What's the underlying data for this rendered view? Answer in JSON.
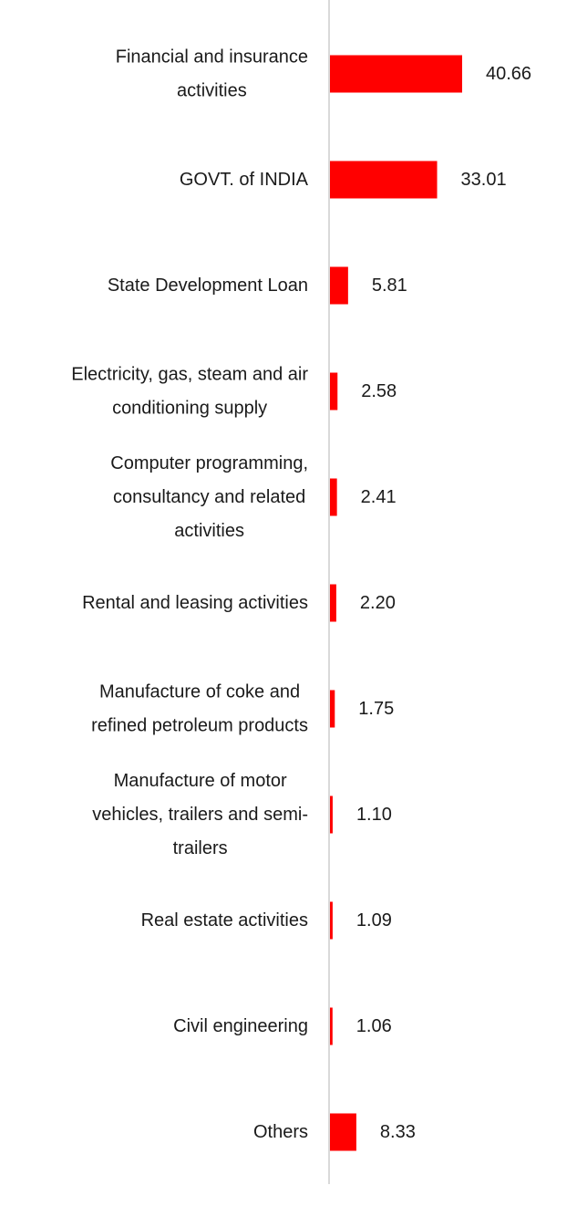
{
  "chart_data": {
    "type": "bar",
    "orientation": "horizontal",
    "categories": [
      "Financial and insurance activities",
      "GOVT. of INDIA",
      "State Development Loan",
      "Electricity, gas, steam and air conditioning supply",
      "Computer programming, consultancy and related activities",
      "Rental and leasing activities",
      "Manufacture of coke and refined petroleum products",
      "Manufacture of motor vehicles, trailers and semi-trailers",
      "Real estate activities",
      "Civil engineering",
      "Others"
    ],
    "category_lines": [
      [
        "Financial and insurance",
        "activities"
      ],
      [
        "GOVT. of INDIA"
      ],
      [
        "State Development Loan"
      ],
      [
        "Electricity, gas, steam and air",
        "conditioning supply"
      ],
      [
        "Computer programming,",
        "consultancy and related",
        "activities"
      ],
      [
        "Rental and leasing activities"
      ],
      [
        "Manufacture of coke and",
        "refined petroleum products"
      ],
      [
        "Manufacture of motor",
        "vehicles, trailers and semi-",
        "trailers"
      ],
      [
        "Real estate activities"
      ],
      [
        "Civil engineering"
      ],
      [
        "Others"
      ]
    ],
    "values": [
      40.66,
      33.01,
      5.81,
      2.58,
      2.41,
      2.2,
      1.75,
      1.1,
      1.09,
      1.06,
      8.33
    ],
    "value_labels": [
      "40.66",
      "33.01",
      "5.81",
      "2.58",
      "2.41",
      "2.20",
      "1.75",
      "1.10",
      "1.09",
      "1.06",
      "8.33"
    ],
    "title": "",
    "xlabel": "",
    "ylabel": "",
    "xlim": [
      0,
      40.66
    ],
    "grid": false,
    "legend": "none",
    "bar_color": "#ff0000",
    "axis_color": "#d9d9d9",
    "text_color": "#1a1a1a"
  }
}
